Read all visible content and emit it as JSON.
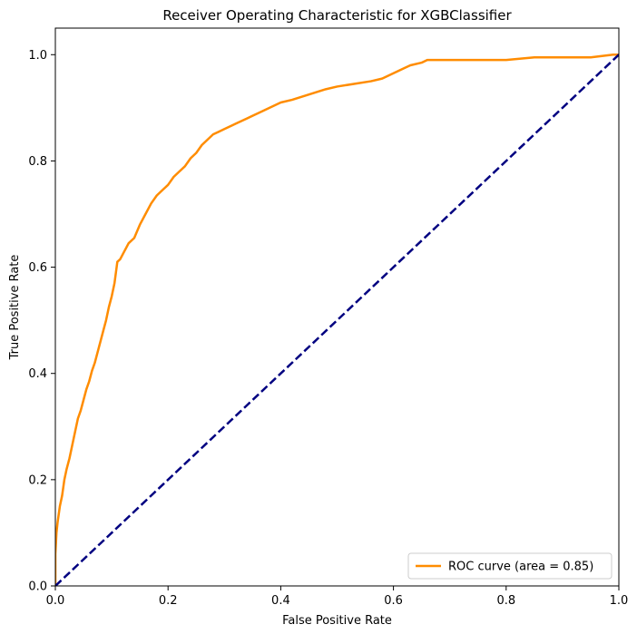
{
  "chart_data": {
    "type": "line",
    "title": "Receiver Operating Characteristic for XGBClassifier",
    "xlabel": "False Positive Rate",
    "ylabel": "True Positive Rate",
    "xlim": [
      0.0,
      1.0
    ],
    "ylim": [
      0.0,
      1.05
    ],
    "xticks": [
      0.0,
      0.2,
      0.4,
      0.6,
      0.8,
      1.0
    ],
    "yticks": [
      0.0,
      0.2,
      0.4,
      0.6,
      0.8,
      1.0
    ],
    "xtick_labels": [
      "0.0",
      "0.2",
      "0.4",
      "0.6",
      "0.8",
      "1.0"
    ],
    "ytick_labels": [
      "0.0",
      "0.2",
      "0.4",
      "0.6",
      "0.8",
      "1.0"
    ],
    "grid": false,
    "legend_position": "lower-right",
    "series": [
      {
        "name": "ROC curve (area = 0.85)",
        "color": "#ff8c00",
        "style": "solid",
        "x": [
          0.0,
          0.0,
          0.002,
          0.004,
          0.006,
          0.008,
          0.012,
          0.016,
          0.02,
          0.025,
          0.03,
          0.035,
          0.04,
          0.045,
          0.05,
          0.055,
          0.06,
          0.065,
          0.07,
          0.075,
          0.08,
          0.085,
          0.09,
          0.095,
          0.1,
          0.105,
          0.11,
          0.115,
          0.12,
          0.125,
          0.13,
          0.14,
          0.15,
          0.16,
          0.17,
          0.18,
          0.19,
          0.2,
          0.21,
          0.22,
          0.23,
          0.24,
          0.25,
          0.26,
          0.27,
          0.28,
          0.29,
          0.3,
          0.32,
          0.34,
          0.36,
          0.38,
          0.4,
          0.42,
          0.45,
          0.48,
          0.5,
          0.53,
          0.56,
          0.58,
          0.6,
          0.62,
          0.63,
          0.65,
          0.66,
          0.7,
          0.75,
          0.8,
          0.85,
          0.9,
          0.95,
          0.99,
          1.0
        ],
        "y": [
          0.0,
          0.06,
          0.1,
          0.12,
          0.135,
          0.15,
          0.17,
          0.2,
          0.22,
          0.24,
          0.265,
          0.29,
          0.315,
          0.33,
          0.35,
          0.37,
          0.385,
          0.405,
          0.42,
          0.44,
          0.46,
          0.48,
          0.5,
          0.525,
          0.545,
          0.57,
          0.61,
          0.615,
          0.625,
          0.635,
          0.645,
          0.655,
          0.68,
          0.7,
          0.72,
          0.735,
          0.745,
          0.755,
          0.77,
          0.78,
          0.79,
          0.805,
          0.815,
          0.83,
          0.84,
          0.85,
          0.855,
          0.86,
          0.87,
          0.88,
          0.89,
          0.9,
          0.91,
          0.915,
          0.925,
          0.935,
          0.94,
          0.945,
          0.95,
          0.955,
          0.965,
          0.975,
          0.98,
          0.985,
          0.99,
          0.99,
          0.99,
          0.99,
          0.995,
          0.995,
          0.995,
          1.0,
          1.0
        ]
      },
      {
        "name": "",
        "color": "#000080",
        "style": "dashed",
        "x": [
          0.0,
          1.0
        ],
        "y": [
          0.0,
          1.0
        ]
      }
    ]
  }
}
